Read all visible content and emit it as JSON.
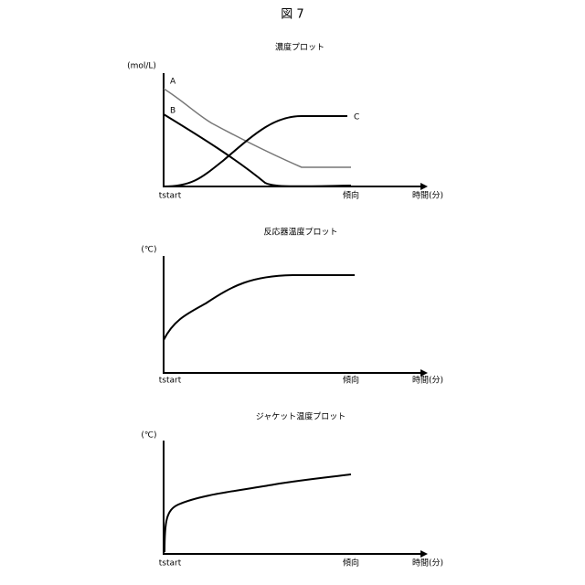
{
  "figure_label": "図 7",
  "plots": [
    {
      "title": "濃度プロット",
      "y_unit": "(mol/L)",
      "x_start": "tstart",
      "x_mark": "傾向",
      "x_unit": "時間(分)",
      "curve_labels": [
        "A",
        "B",
        "C"
      ]
    },
    {
      "title": "反応器温度プロット",
      "y_unit": "(℃)",
      "x_start": "tstart",
      "x_mark": "傾向",
      "x_unit": "時間(分)"
    },
    {
      "title": "ジャケット温度プロット",
      "y_unit": "(℃)",
      "x_start": "tstart",
      "x_mark": "傾向",
      "x_unit": "時間(分)"
    }
  ]
}
